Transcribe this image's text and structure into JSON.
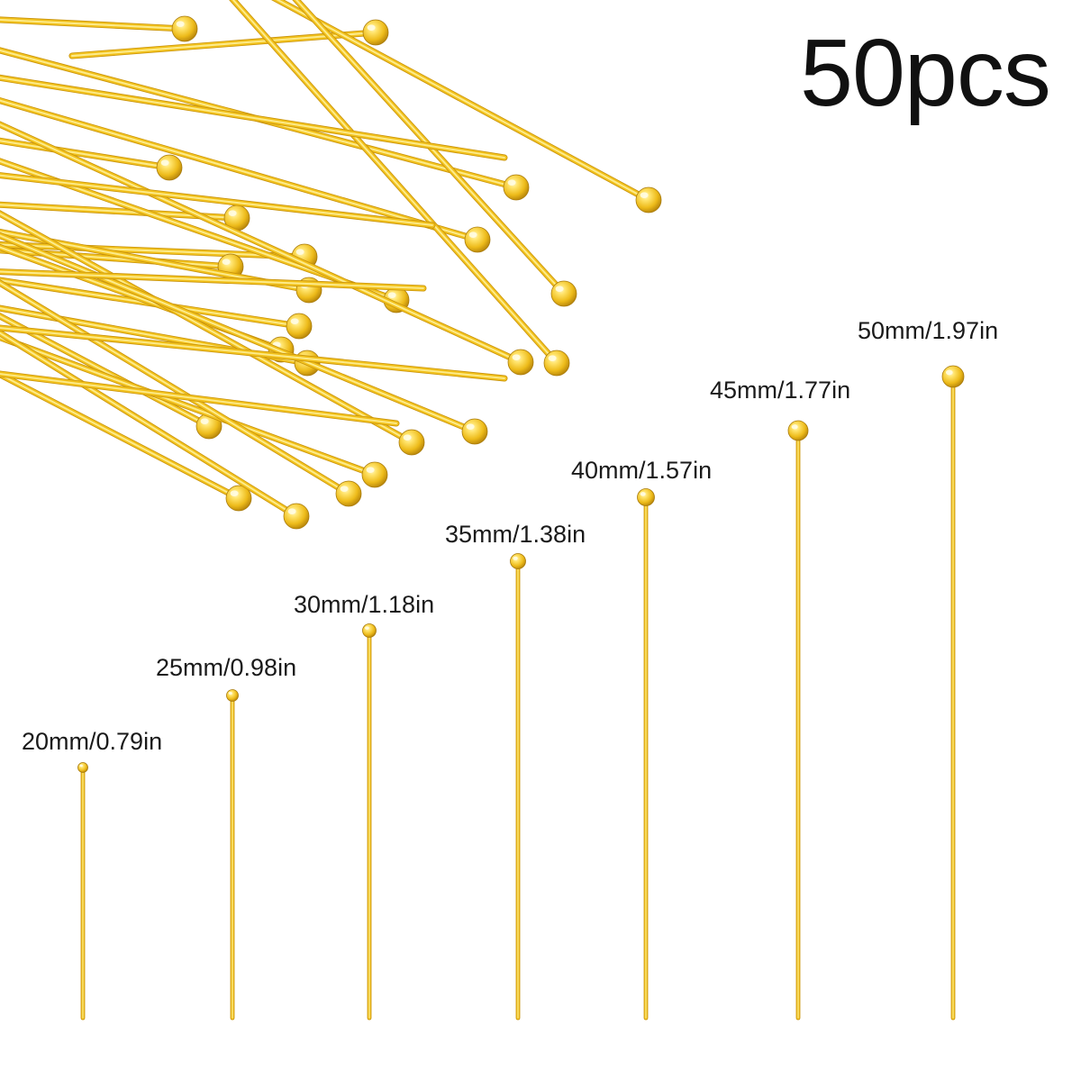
{
  "quantity_label": "50pcs",
  "colors": {
    "background": "#ffffff",
    "gold_light": "#FFF19A",
    "gold_mid": "#F2C21E",
    "gold_dark": "#C8920A",
    "text": "#111111"
  },
  "pins": [
    {
      "label": "20mm/0.79in"
    },
    {
      "label": "25mm/0.98in"
    },
    {
      "label": "30mm/1.18in"
    },
    {
      "label": "35mm/1.38in"
    },
    {
      "label": "40mm/1.57in"
    },
    {
      "label": "45mm/1.77in"
    },
    {
      "label": "50mm/1.97in"
    }
  ]
}
